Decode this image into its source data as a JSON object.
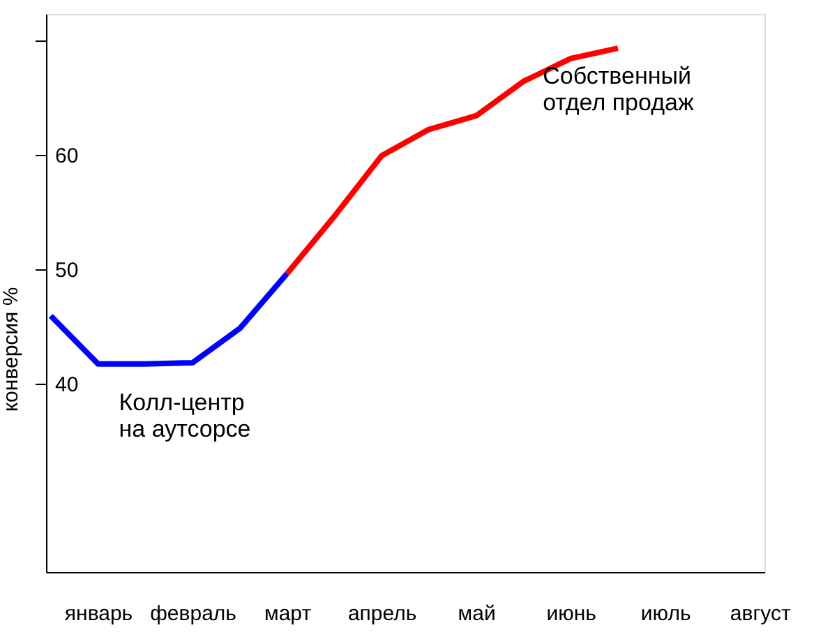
{
  "chart_data": {
    "type": "line",
    "ylabel": "конверсия %",
    "categories": [
      null,
      "январь",
      null,
      "февраль",
      null,
      "март",
      null,
      "апрель",
      null,
      "май",
      null,
      "июнь",
      null,
      "июль",
      null,
      "август"
    ],
    "ylim": [
      23.5,
      72.3
    ],
    "yticks": [
      40,
      50,
      60,
      {
        "value": 70,
        "label": null
      }
    ],
    "grid": false,
    "legend": false,
    "marker": "none",
    "line_style": "solid",
    "series": [
      {
        "name": "Колл-центр\nна аутсорсе",
        "color": "#0000ff",
        "values": [
          45.9,
          41.7,
          41.7,
          41.8,
          44.8,
          49.6,
          null,
          null,
          null,
          null,
          null,
          null,
          null,
          null,
          null,
          null
        ]
      },
      {
        "name": "Собственный\nотдел продаж",
        "color": "#ff0000",
        "values": [
          null,
          null,
          null,
          null,
          null,
          49.6,
          54.6,
          59.9,
          62.2,
          63.4,
          66.4,
          68.4,
          69.3,
          null,
          null,
          null
        ]
      }
    ]
  }
}
